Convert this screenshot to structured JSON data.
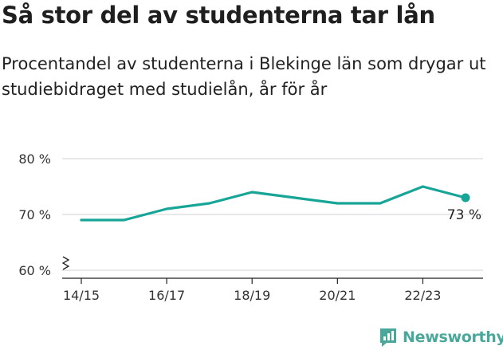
{
  "title": "Så stor del av studenterna tar lån",
  "subtitle": "Procentandel av studenterna i Blekinge län som drygar ut studiebidraget med studielån, år för år",
  "brand": {
    "name": "Newsworthy",
    "icon": "bar-chart-logo-icon",
    "color": "#4aa89a"
  },
  "colors": {
    "line": "#17a597",
    "grid": "#e0e0e0"
  },
  "chart_data": {
    "type": "line",
    "x": [
      "14/15",
      "15/16",
      "16/17",
      "17/18",
      "18/19",
      "19/20",
      "20/21",
      "21/22",
      "22/23",
      "23/24"
    ],
    "tick_labels": [
      "14/15",
      "16/17",
      "18/19",
      "20/21",
      "22/23"
    ],
    "series": [
      {
        "values": [
          69,
          69,
          71,
          72,
          74,
          73,
          72,
          72,
          75,
          73
        ]
      }
    ],
    "yticks": [
      60,
      70,
      80
    ],
    "ytick_labels": [
      "60 %",
      "70 %",
      "80 %"
    ],
    "ylim": [
      60,
      80
    ],
    "y_axis_broken": true,
    "end_label": "73 %",
    "grid": true
  }
}
